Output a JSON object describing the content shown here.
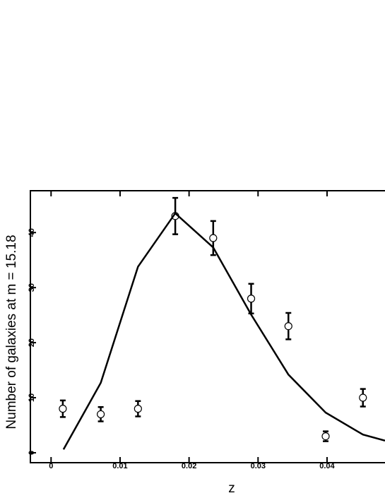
{
  "chart_data": {
    "type": "scatter",
    "xlabel": "z",
    "ylabel": "Number of galaxies at m = 15.18",
    "xlim": [
      -0.003,
      0.0484
    ],
    "ylim": [
      -1.8,
      47.6
    ],
    "xticks": [
      0,
      0.01,
      0.02,
      0.03,
      0.04
    ],
    "yticks": [
      0,
      10,
      20,
      30,
      40
    ],
    "series": [
      {
        "type": "errorbar",
        "color": "#000000",
        "x": [
          0.0017,
          0.0072,
          0.0126,
          0.018,
          0.0235,
          0.029,
          0.0344,
          0.0398,
          0.0452
        ],
        "values": [
          8,
          7,
          8,
          43,
          39,
          28,
          23,
          3,
          10
        ],
        "errors": [
          1.5,
          1.3,
          1.4,
          3.3,
          3.1,
          2.7,
          2.4,
          0.9,
          1.6
        ]
      },
      {
        "type": "line",
        "color": "#000000",
        "x": [
          0.0018,
          0.0072,
          0.0126,
          0.018,
          0.0235,
          0.029,
          0.0344,
          0.0398,
          0.0452,
          0.0484
        ],
        "values": [
          0.6,
          12.7,
          33.8,
          43.5,
          37.3,
          25.1,
          14.2,
          7.3,
          3.3,
          2.2
        ]
      }
    ]
  }
}
